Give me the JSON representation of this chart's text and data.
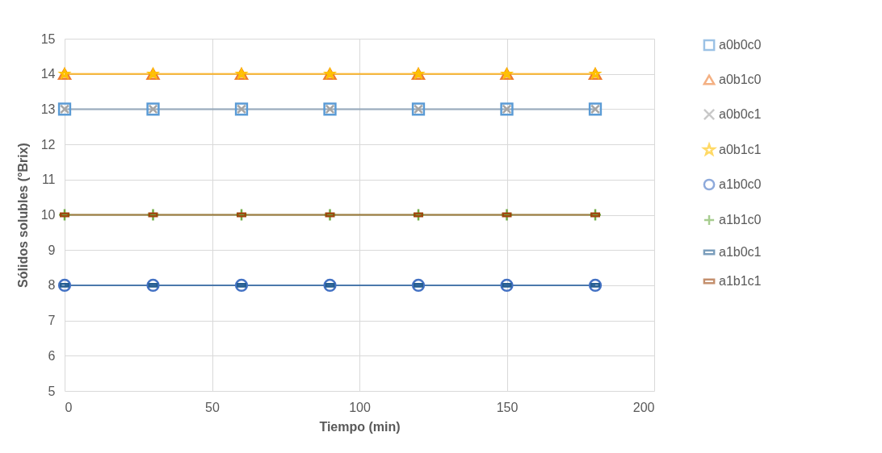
{
  "chart_data": {
    "type": "line",
    "xlabel": "Tiempo (min)",
    "ylabel": "Sólidos solubles (°Brix)",
    "x": [
      0,
      30,
      60,
      90,
      120,
      150,
      180
    ],
    "xlim": [
      0,
      200
    ],
    "xticks": [
      0,
      50,
      100,
      150,
      200
    ],
    "ylim": [
      5,
      15
    ],
    "yticks": [
      5,
      6,
      7,
      8,
      9,
      10,
      11,
      12,
      13,
      14,
      15
    ],
    "grid": true,
    "legend": "right",
    "line_style": "solid",
    "series": [
      {
        "name": "a0b0c0",
        "color": "#5b9bd5",
        "marker": "square",
        "values": [
          13,
          13,
          13,
          13,
          13,
          13,
          13
        ]
      },
      {
        "name": "a0b1c0",
        "color": "#ed7d31",
        "marker": "triangle",
        "values": [
          14,
          14,
          14,
          14,
          14,
          14,
          14
        ]
      },
      {
        "name": "a0b0c1",
        "color": "#a5a5a5",
        "marker": "x",
        "values": [
          13,
          13,
          13,
          13,
          13,
          13,
          13
        ]
      },
      {
        "name": "a0b1c1",
        "color": "#ffc000",
        "marker": "star",
        "values": [
          14,
          14,
          14,
          14,
          14,
          14,
          14
        ]
      },
      {
        "name": "a1b0c0",
        "color": "#4472c4",
        "marker": "circle",
        "values": [
          8,
          8,
          8,
          8,
          8,
          8,
          8
        ]
      },
      {
        "name": "a1b1c0",
        "color": "#70ad47",
        "marker": "cross",
        "values": [
          10,
          10,
          10,
          10,
          10,
          10,
          10
        ]
      },
      {
        "name": "a1b0c1",
        "color": "#255e91",
        "marker": "square",
        "values": [
          8,
          8,
          8,
          8,
          8,
          8,
          8
        ]
      },
      {
        "name": "a1b1c1",
        "color": "#9e480e",
        "marker": "square",
        "values": [
          10,
          10,
          10,
          10,
          10,
          10,
          10
        ]
      }
    ]
  }
}
